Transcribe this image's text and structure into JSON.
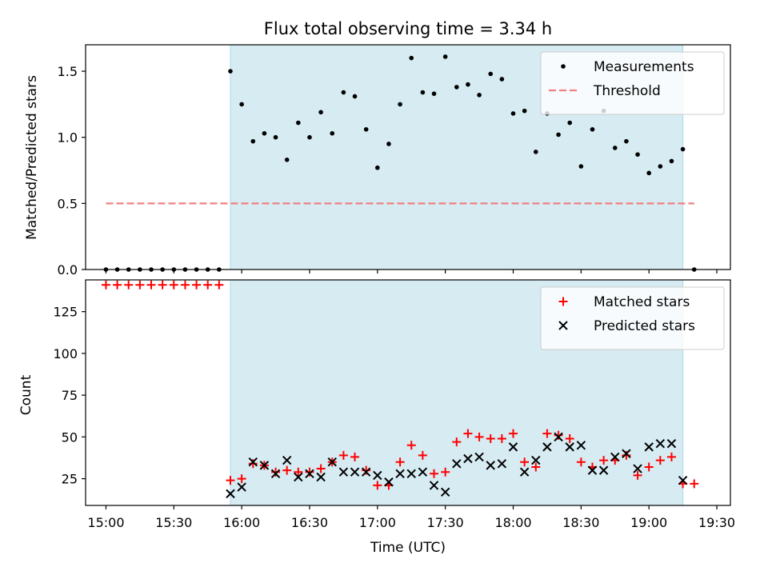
{
  "chart_data": [
    {
      "type": "scatter",
      "title": "Flux total observing time = 3.34 h",
      "ylabel": "Matched/Predicted stars",
      "xlabel": "",
      "x_axis": "time (UTC)",
      "xlim": [
        "14:51",
        "19:36"
      ],
      "ylim": [
        0,
        1.7
      ],
      "yticks": [
        "0.0",
        "0.5",
        "1.0",
        "1.5"
      ],
      "shaded_region": [
        "15:55",
        "19:15"
      ],
      "shade_color": "#add8e6",
      "legend": {
        "placement": "top-right",
        "entries": [
          "Measurements",
          "Threshold"
        ]
      },
      "threshold": {
        "name": "Threshold",
        "value": 0.5,
        "x_range": [
          "15:00",
          "19:20"
        ],
        "color": "#f08080",
        "style": "dashed"
      },
      "series": [
        {
          "name": "Measurements",
          "color": "#000000",
          "marker": "dot",
          "points": [
            [
              "15:00",
              0
            ],
            [
              "15:05",
              0
            ],
            [
              "15:10",
              0
            ],
            [
              "15:15",
              0
            ],
            [
              "15:20",
              0
            ],
            [
              "15:25",
              0
            ],
            [
              "15:30",
              0
            ],
            [
              "15:35",
              0
            ],
            [
              "15:40",
              0
            ],
            [
              "15:45",
              0
            ],
            [
              "15:50",
              0
            ],
            [
              "15:55",
              1.5
            ],
            [
              "16:00",
              1.25
            ],
            [
              "16:05",
              0.97
            ],
            [
              "16:10",
              1.03
            ],
            [
              "16:15",
              1.0
            ],
            [
              "16:20",
              0.83
            ],
            [
              "16:25",
              1.11
            ],
            [
              "16:30",
              1.0
            ],
            [
              "16:35",
              1.19
            ],
            [
              "16:40",
              1.03
            ],
            [
              "16:45",
              1.34
            ],
            [
              "16:50",
              1.31
            ],
            [
              "16:55",
              1.06
            ],
            [
              "17:00",
              0.77
            ],
            [
              "17:05",
              0.95
            ],
            [
              "17:10",
              1.25
            ],
            [
              "17:15",
              1.6
            ],
            [
              "17:20",
              1.34
            ],
            [
              "17:25",
              1.33
            ],
            [
              "17:30",
              1.61
            ],
            [
              "17:35",
              1.38
            ],
            [
              "17:40",
              1.4
            ],
            [
              "17:45",
              1.32
            ],
            [
              "17:50",
              1.48
            ],
            [
              "17:55",
              1.44
            ],
            [
              "18:00",
              1.18
            ],
            [
              "18:05",
              1.2
            ],
            [
              "18:10",
              0.89
            ],
            [
              "18:15",
              1.18
            ],
            [
              "18:20",
              1.02
            ],
            [
              "18:25",
              1.11
            ],
            [
              "18:30",
              0.78
            ],
            [
              "18:35",
              1.06
            ],
            [
              "18:40",
              1.2
            ],
            [
              "18:45",
              0.92
            ],
            [
              "18:50",
              0.97
            ],
            [
              "18:55",
              0.87
            ],
            [
              "19:00",
              0.73
            ],
            [
              "19:05",
              0.78
            ],
            [
              "19:10",
              0.82
            ],
            [
              "19:15",
              0.91
            ],
            [
              "19:20",
              0
            ]
          ]
        }
      ]
    },
    {
      "type": "scatter",
      "title": "",
      "ylabel": "Count",
      "xlabel": "Time (UTC)",
      "xlim": [
        "14:51",
        "19:36"
      ],
      "ylim": [
        9,
        144
      ],
      "yticks": [
        "25",
        "50",
        "75",
        "100",
        "125"
      ],
      "xticks": [
        "15:00",
        "15:30",
        "16:00",
        "16:30",
        "17:00",
        "17:30",
        "18:00",
        "18:30",
        "19:00",
        "19:30"
      ],
      "shaded_region": [
        "15:55",
        "19:15"
      ],
      "shade_color": "#add8e6",
      "legend": {
        "placement": "top-right",
        "entries": [
          "Matched stars",
          "Predicted stars"
        ]
      },
      "series": [
        {
          "name": "Matched stars",
          "color": "#ff0000",
          "marker": "plus",
          "points": [
            [
              "15:00",
              141
            ],
            [
              "15:05",
              141
            ],
            [
              "15:10",
              141
            ],
            [
              "15:15",
              141
            ],
            [
              "15:20",
              141
            ],
            [
              "15:25",
              141
            ],
            [
              "15:30",
              141
            ],
            [
              "15:35",
              141
            ],
            [
              "15:40",
              141
            ],
            [
              "15:45",
              141
            ],
            [
              "15:50",
              141
            ],
            [
              "15:55",
              24
            ],
            [
              "16:00",
              25
            ],
            [
              "16:05",
              34
            ],
            [
              "16:10",
              33
            ],
            [
              "16:15",
              29
            ],
            [
              "16:20",
              30
            ],
            [
              "16:25",
              29
            ],
            [
              "16:30",
              29
            ],
            [
              "16:35",
              31
            ],
            [
              "16:40",
              35
            ],
            [
              "16:45",
              39
            ],
            [
              "16:50",
              38
            ],
            [
              "16:55",
              30
            ],
            [
              "17:00",
              21
            ],
            [
              "17:05",
              21
            ],
            [
              "17:10",
              35
            ],
            [
              "17:15",
              45
            ],
            [
              "17:20",
              39
            ],
            [
              "17:25",
              28
            ],
            [
              "17:30",
              29
            ],
            [
              "17:35",
              47
            ],
            [
              "17:40",
              52
            ],
            [
              "17:45",
              50
            ],
            [
              "17:50",
              49
            ],
            [
              "17:55",
              49
            ],
            [
              "18:00",
              52
            ],
            [
              "18:05",
              35
            ],
            [
              "18:10",
              32
            ],
            [
              "18:15",
              52
            ],
            [
              "18:20",
              51
            ],
            [
              "18:25",
              49
            ],
            [
              "18:30",
              35
            ],
            [
              "18:35",
              32
            ],
            [
              "18:40",
              36
            ],
            [
              "18:45",
              36
            ],
            [
              "18:50",
              39
            ],
            [
              "18:55",
              27
            ],
            [
              "19:00",
              32
            ],
            [
              "19:05",
              36
            ],
            [
              "19:10",
              38
            ],
            [
              "19:15",
              22
            ],
            [
              "19:20",
              22
            ]
          ]
        },
        {
          "name": "Predicted stars",
          "color": "#000000",
          "marker": "x",
          "points": [
            [
              "15:55",
              16
            ],
            [
              "16:00",
              20
            ],
            [
              "16:05",
              35
            ],
            [
              "16:10",
              33
            ],
            [
              "16:15",
              28
            ],
            [
              "16:20",
              36
            ],
            [
              "16:25",
              26
            ],
            [
              "16:30",
              28
            ],
            [
              "16:35",
              26
            ],
            [
              "16:40",
              35
            ],
            [
              "16:45",
              29
            ],
            [
              "16:50",
              29
            ],
            [
              "16:55",
              29
            ],
            [
              "17:00",
              27
            ],
            [
              "17:05",
              23
            ],
            [
              "17:10",
              28
            ],
            [
              "17:15",
              28
            ],
            [
              "17:20",
              29
            ],
            [
              "17:25",
              21
            ],
            [
              "17:30",
              17
            ],
            [
              "17:35",
              34
            ],
            [
              "17:40",
              37
            ],
            [
              "17:45",
              38
            ],
            [
              "17:50",
              33
            ],
            [
              "17:55",
              34
            ],
            [
              "18:00",
              44
            ],
            [
              "18:05",
              29
            ],
            [
              "18:10",
              36
            ],
            [
              "18:15",
              44
            ],
            [
              "18:20",
              50
            ],
            [
              "18:25",
              44
            ],
            [
              "18:30",
              45
            ],
            [
              "18:35",
              30
            ],
            [
              "18:40",
              30
            ],
            [
              "18:45",
              38
            ],
            [
              "18:50",
              40
            ],
            [
              "18:55",
              31
            ],
            [
              "19:00",
              44
            ],
            [
              "19:05",
              46
            ],
            [
              "19:10",
              46
            ],
            [
              "19:15",
              24
            ]
          ]
        }
      ]
    }
  ]
}
